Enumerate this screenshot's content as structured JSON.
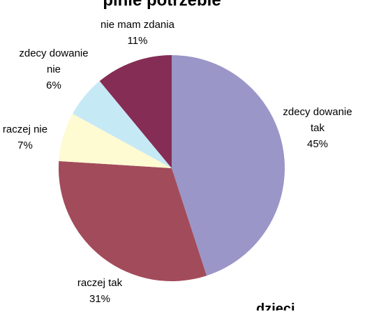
{
  "chart_data": {
    "type": "pie",
    "title": "",
    "title_fragment_top": "pinie potrzebie",
    "corner_label": "dzieci",
    "series": [
      {
        "label": "zdecydowanie tak",
        "label_lines": [
          "zdecy dowanie",
          "tak"
        ],
        "value": 45,
        "value_label": "45%",
        "color": "#9b96c8"
      },
      {
        "label": "raczej tak",
        "label_lines": [
          "raczej tak"
        ],
        "value": 31,
        "value_label": "31%",
        "color": "#a24b5b"
      },
      {
        "label": "raczej nie",
        "label_lines": [
          "raczej nie"
        ],
        "value": 7,
        "value_label": "7%",
        "color": "#fefad2"
      },
      {
        "label": "zdecydowanie nie",
        "label_lines": [
          "zdecy dowanie",
          "nie"
        ],
        "value": 6,
        "value_label": "6%",
        "color": "#c6e9f6"
      },
      {
        "label": "nie mam zdania",
        "label_lines": [
          "nie mam zdania"
        ],
        "value": 11,
        "value_label": "11%",
        "color": "#852d55"
      }
    ]
  }
}
